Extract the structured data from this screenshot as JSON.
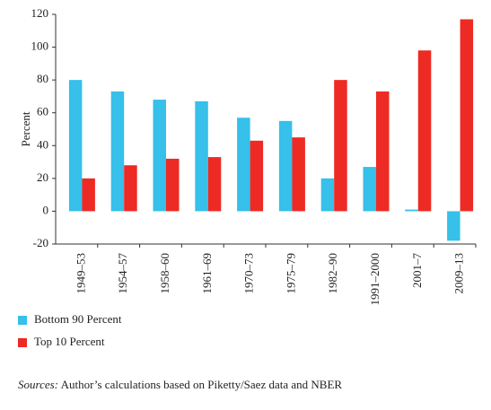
{
  "chart_data": {
    "type": "bar",
    "y_label": "Percent",
    "categories": [
      "1949–53",
      "1954–57",
      "1958–60",
      "1961–69",
      "1970–73",
      "1975–79",
      "1982–90",
      "1991–2000",
      "2001–7",
      "2009–13"
    ],
    "series": [
      {
        "name": "Bottom 90 Percent",
        "color": "#36c0ea",
        "values": [
          80,
          73,
          68,
          67,
          57,
          55,
          20,
          27,
          1,
          -18
        ]
      },
      {
        "name": "Top 10 Percent",
        "color": "#ee2a24",
        "values": [
          20,
          28,
          32,
          33,
          43,
          45,
          80,
          73,
          98,
          117
        ]
      }
    ],
    "ylim": [
      -20,
      120
    ],
    "yticks": [
      -20,
      0,
      20,
      40,
      60,
      80,
      100,
      120
    ],
    "source_prefix": "Sources:",
    "source_text": "Author’s calculations based on Piketty/Saez data and NBER"
  }
}
